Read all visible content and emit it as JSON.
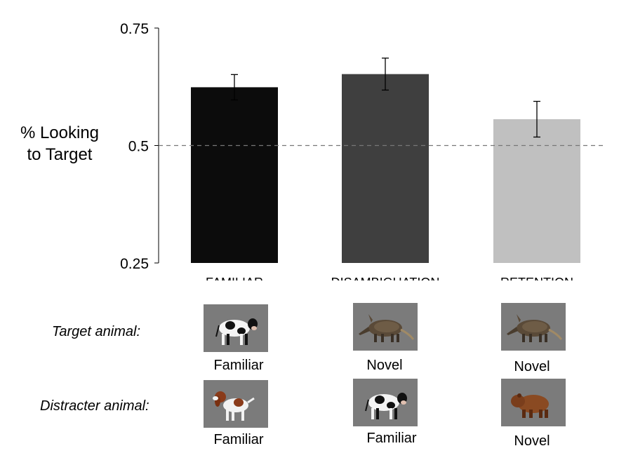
{
  "chart_data": {
    "type": "bar",
    "ylabel_lines": [
      "% Looking",
      "to Target"
    ],
    "yticks": [
      "0.75",
      "0.5",
      "0.25"
    ],
    "ylim": [
      0.25,
      0.75
    ],
    "reference_line": 0.5,
    "categories": [
      "FAMILIAR",
      "DISAMBIGUATION",
      "RETENTION"
    ],
    "values": [
      0.624,
      0.652,
      0.556
    ],
    "error": [
      0.027,
      0.034,
      0.038
    ],
    "colors": [
      "#0c0c0c",
      "#3f3f3f",
      "#c0c0c0"
    ],
    "grid": false
  },
  "stimuli": {
    "target_label": "Target animal:",
    "distracter_label": "Distracter animal:",
    "targets": [
      {
        "animal": "cow",
        "caption": "Familiar"
      },
      {
        "animal": "aardvark",
        "caption": "Novel"
      },
      {
        "animal": "aardvark",
        "caption": "Novel"
      }
    ],
    "distracters": [
      {
        "animal": "spaniel",
        "caption": "Familiar"
      },
      {
        "animal": "cow",
        "caption": "Familiar"
      },
      {
        "animal": "capybara",
        "caption": "Novel"
      }
    ]
  }
}
